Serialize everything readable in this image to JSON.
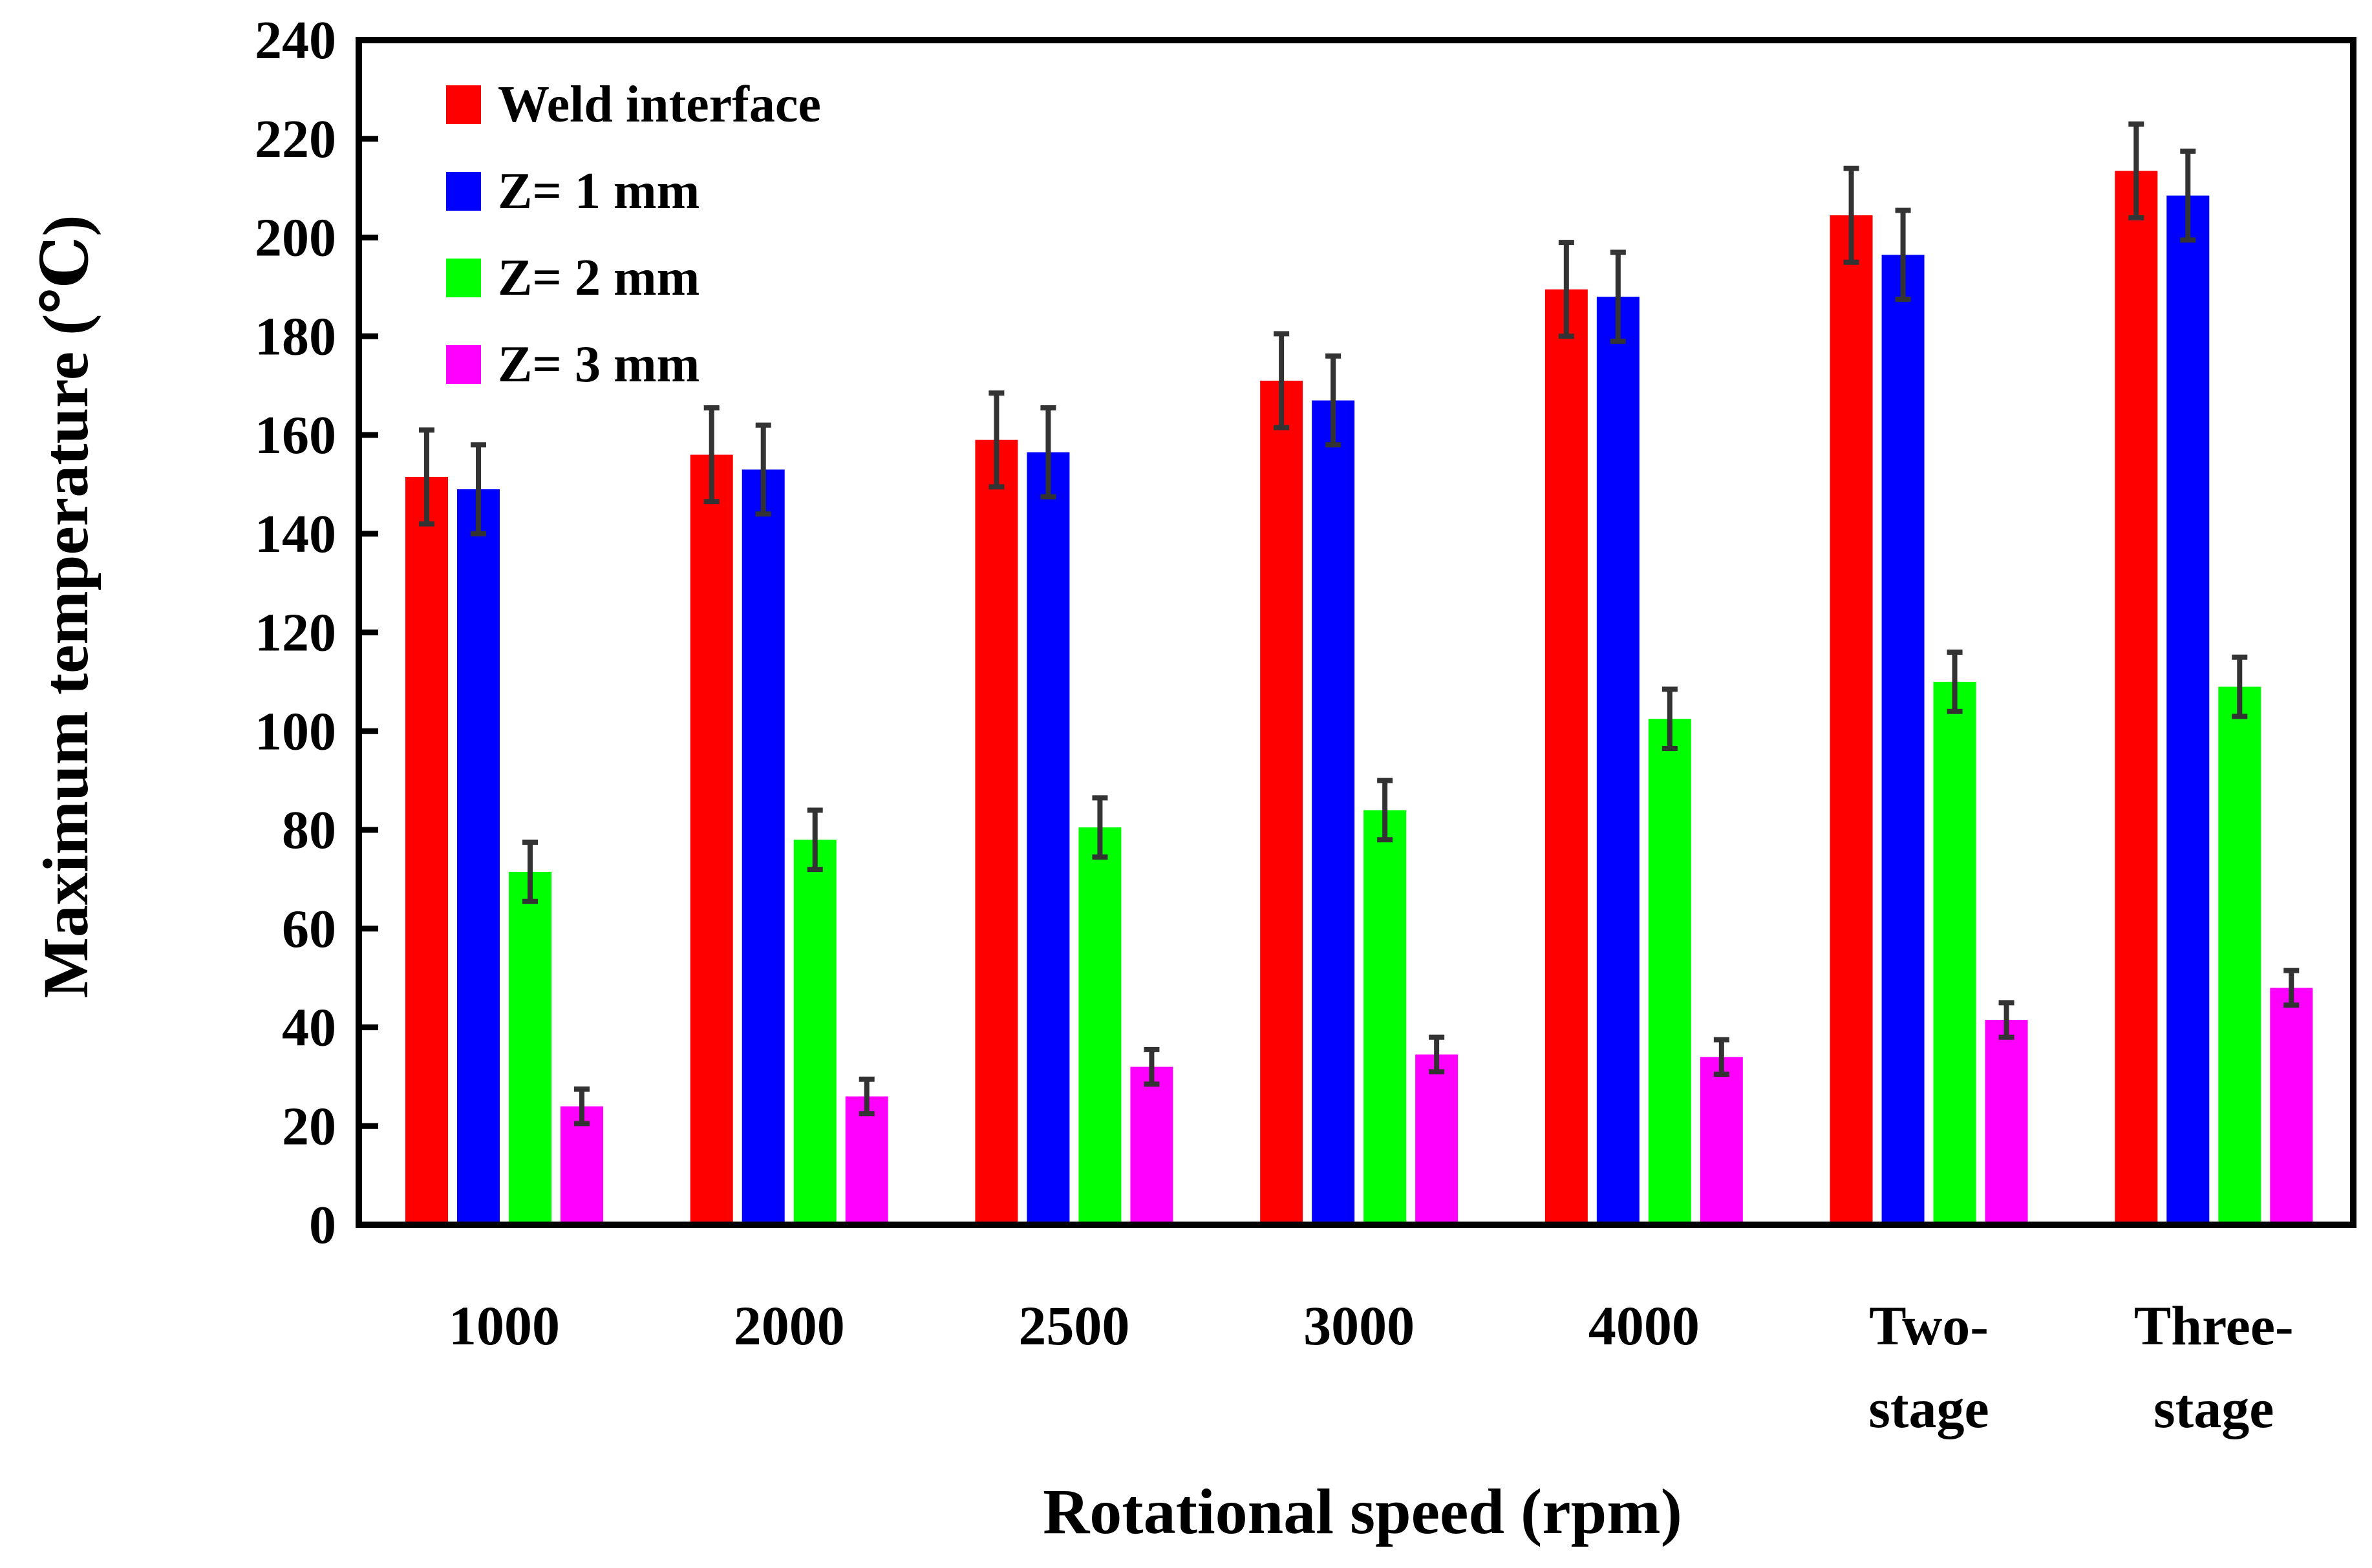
{
  "chart_data": {
    "type": "bar",
    "title": "",
    "xlabel": "Rotational speed (rpm)",
    "ylabel": "Maximum temperature (℃)",
    "ylim": [
      0,
      240
    ],
    "yticks": [
      "0",
      "20",
      "40",
      "60",
      "80",
      "100",
      "120",
      "140",
      "160",
      "180",
      "200",
      "220",
      "240"
    ],
    "grid": false,
    "legend_position": "top-left",
    "categories": [
      [
        "1000"
      ],
      [
        "2000"
      ],
      [
        "2500"
      ],
      [
        "3000"
      ],
      [
        "4000"
      ],
      [
        "Two-",
        "stage"
      ],
      [
        "Three-",
        "stage"
      ]
    ],
    "series": [
      {
        "name": "Weld interface",
        "color": "#ff0000",
        "values": [
          151.5,
          156,
          159,
          171,
          189.5,
          204.5,
          213.5
        ],
        "errors": [
          9.5,
          9.5,
          9.5,
          9.5,
          9.5,
          9.5,
          9.5
        ]
      },
      {
        "name": "Z= 1 mm",
        "color": "#0000ff",
        "values": [
          149,
          153,
          156.5,
          167,
          188,
          196.5,
          208.5
        ],
        "errors": [
          9,
          9,
          9,
          9,
          9,
          9,
          9
        ]
      },
      {
        "name": "Z= 2 mm",
        "color": "#00ff00",
        "values": [
          71.5,
          78,
          80.5,
          84,
          102.5,
          110,
          109
        ],
        "errors": [
          6,
          6,
          6,
          6,
          6,
          6,
          6
        ]
      },
      {
        "name": "Z= 3 mm",
        "color": "#ff00ff",
        "values": [
          24,
          26,
          32,
          34.5,
          34,
          41.5,
          48
        ],
        "errors": [
          3.5,
          3.5,
          3.5,
          3.5,
          3.5,
          3.5,
          3.5
        ]
      }
    ]
  }
}
